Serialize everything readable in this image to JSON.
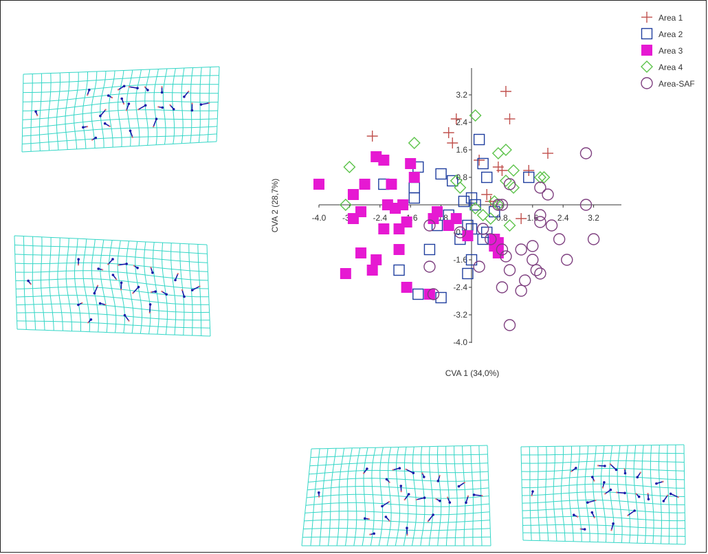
{
  "chart_data": {
    "type": "scatter",
    "xlabel": "CVA 1 (34,0%)",
    "ylabel": "CVA 2 (28,7%)",
    "xlim": [
      -4.0,
      4.0
    ],
    "ylim": [
      -4.0,
      4.0
    ],
    "x_ticks": [
      "-4.0",
      "-3.2",
      "-2.4",
      "-1.6",
      "-0.8",
      "0.8",
      "1.6",
      "2.4",
      "3.2"
    ],
    "y_ticks": [
      "3.2",
      "2.4",
      "1.6",
      "0.8",
      "-0.8",
      "-1.6",
      "-2.4",
      "-3.2",
      "-4.0"
    ],
    "grid": false,
    "legend_position": "top-right",
    "series": [
      {
        "name": "Area 1",
        "marker": "plus",
        "color": "#c0504d",
        "points": [
          [
            0.9,
            3.3
          ],
          [
            1.0,
            2.5
          ],
          [
            -0.4,
            2.5
          ],
          [
            -0.6,
            2.1
          ],
          [
            -2.6,
            2.0
          ],
          [
            -0.5,
            1.8
          ],
          [
            0.2,
            1.3
          ],
          [
            0.7,
            1.1
          ],
          [
            0.8,
            1.0
          ],
          [
            1.5,
            1.0
          ],
          [
            2.0,
            1.5
          ],
          [
            0.4,
            0.3
          ],
          [
            0.5,
            0.1
          ],
          [
            1.3,
            -0.4
          ]
        ]
      },
      {
        "name": "Area 2",
        "marker": "square-open",
        "color": "#1f3e9e",
        "points": [
          [
            0.2,
            1.9
          ],
          [
            0.3,
            1.2
          ],
          [
            -1.5,
            0.5
          ],
          [
            -1.4,
            1.1
          ],
          [
            -0.8,
            0.9
          ],
          [
            -2.3,
            0.6
          ],
          [
            -1.5,
            0.2
          ],
          [
            -0.5,
            0.7
          ],
          [
            0.0,
            0.2
          ],
          [
            0.6,
            -0.2
          ],
          [
            -0.2,
            0.1
          ],
          [
            0.1,
            0.0
          ],
          [
            -0.9,
            -0.6
          ],
          [
            0.0,
            -0.7
          ],
          [
            0.4,
            -0.8
          ],
          [
            -0.3,
            -1.0
          ],
          [
            -1.1,
            -1.3
          ],
          [
            0.0,
            -1.6
          ],
          [
            -1.9,
            -1.9
          ],
          [
            -0.1,
            -2.0
          ],
          [
            -1.4,
            -2.6
          ],
          [
            -0.8,
            -2.7
          ],
          [
            0.4,
            0.8
          ],
          [
            -0.6,
            -0.3
          ],
          [
            0.3,
            -1.0
          ],
          [
            -0.1,
            -0.6
          ],
          [
            1.5,
            0.8
          ]
        ]
      },
      {
        "name": "Area 3",
        "marker": "square-filled",
        "color": "#e619d2",
        "points": [
          [
            -4.0,
            0.6
          ],
          [
            -3.1,
            0.3
          ],
          [
            -2.3,
            1.3
          ],
          [
            -2.5,
            1.4
          ],
          [
            -2.8,
            0.6
          ],
          [
            -2.1,
            0.6
          ],
          [
            -1.6,
            1.2
          ],
          [
            -1.5,
            0.8
          ],
          [
            -2.2,
            0.0
          ],
          [
            -2.0,
            -0.1
          ],
          [
            -1.8,
            0.0
          ],
          [
            -0.9,
            -0.2
          ],
          [
            -1.0,
            -0.4
          ],
          [
            -1.7,
            -0.5
          ],
          [
            -2.3,
            -0.7
          ],
          [
            -2.9,
            -0.2
          ],
          [
            -3.1,
            -0.4
          ],
          [
            -2.9,
            -1.4
          ],
          [
            -2.5,
            -1.6
          ],
          [
            -3.3,
            -2.0
          ],
          [
            -2.6,
            -1.9
          ],
          [
            -1.7,
            -2.4
          ],
          [
            -1.9,
            -1.3
          ],
          [
            -1.1,
            -2.6
          ],
          [
            -0.1,
            -0.9
          ],
          [
            0.6,
            -1.0
          ],
          [
            0.6,
            -1.2
          ],
          [
            0.7,
            -1.4
          ],
          [
            -0.6,
            -0.6
          ],
          [
            -1.9,
            -0.7
          ],
          [
            -0.4,
            -0.4
          ],
          [
            0.7,
            -1.1
          ]
        ]
      },
      {
        "name": "Area 4",
        "marker": "diamond-open",
        "color": "#5cc34a",
        "points": [
          [
            0.1,
            2.6
          ],
          [
            -1.5,
            1.8
          ],
          [
            -3.2,
            1.1
          ],
          [
            0.7,
            1.5
          ],
          [
            0.9,
            1.6
          ],
          [
            1.1,
            1.0
          ],
          [
            0.9,
            0.7
          ],
          [
            1.1,
            0.5
          ],
          [
            1.8,
            0.8
          ],
          [
            1.9,
            0.8
          ],
          [
            0.6,
            0.1
          ],
          [
            -0.4,
            0.7
          ],
          [
            -0.3,
            0.5
          ],
          [
            -3.3,
            0.0
          ],
          [
            0.1,
            -0.1
          ],
          [
            0.3,
            -0.3
          ],
          [
            1.0,
            -0.6
          ],
          [
            0.5,
            -0.4
          ],
          [
            0.7,
            0.0
          ]
        ]
      },
      {
        "name": "Area-SAF",
        "marker": "circle-open",
        "color": "#7e3f7f",
        "points": [
          [
            3.0,
            1.5
          ],
          [
            1.0,
            0.6
          ],
          [
            1.8,
            0.5
          ],
          [
            2.0,
            0.3
          ],
          [
            0.7,
            0.0
          ],
          [
            3.0,
            0.0
          ],
          [
            1.8,
            -0.3
          ],
          [
            1.8,
            -0.5
          ],
          [
            2.1,
            -0.6
          ],
          [
            -1.1,
            -0.6
          ],
          [
            -0.3,
            -0.8
          ],
          [
            0.3,
            -0.7
          ],
          [
            0.5,
            -1.0
          ],
          [
            1.6,
            -1.2
          ],
          [
            0.8,
            -1.3
          ],
          [
            1.3,
            -1.3
          ],
          [
            2.3,
            -1.0
          ],
          [
            3.2,
            -1.0
          ],
          [
            0.9,
            -1.5
          ],
          [
            1.6,
            -1.6
          ],
          [
            2.5,
            -1.6
          ],
          [
            0.2,
            -1.8
          ],
          [
            1.0,
            -1.9
          ],
          [
            1.7,
            -1.9
          ],
          [
            1.8,
            -2.0
          ],
          [
            1.4,
            -2.2
          ],
          [
            0.8,
            -2.4
          ],
          [
            1.3,
            -2.5
          ],
          [
            -1.1,
            -1.8
          ],
          [
            -1.0,
            -2.6
          ],
          [
            1.0,
            -3.5
          ],
          [
            0.8,
            0.0
          ]
        ]
      }
    ]
  },
  "colors": {
    "grid_lines": "#33d6c6",
    "landmark_vectors": "#1a1aa8"
  },
  "deformation_grids": [
    {
      "label": "",
      "icon": "deformation-grid-top-left"
    },
    {
      "label": "",
      "icon": "deformation-grid-middle-left"
    },
    {
      "label": "",
      "icon": "deformation-grid-bottom-center"
    },
    {
      "label": "",
      "icon": "deformation-grid-bottom-right"
    }
  ]
}
